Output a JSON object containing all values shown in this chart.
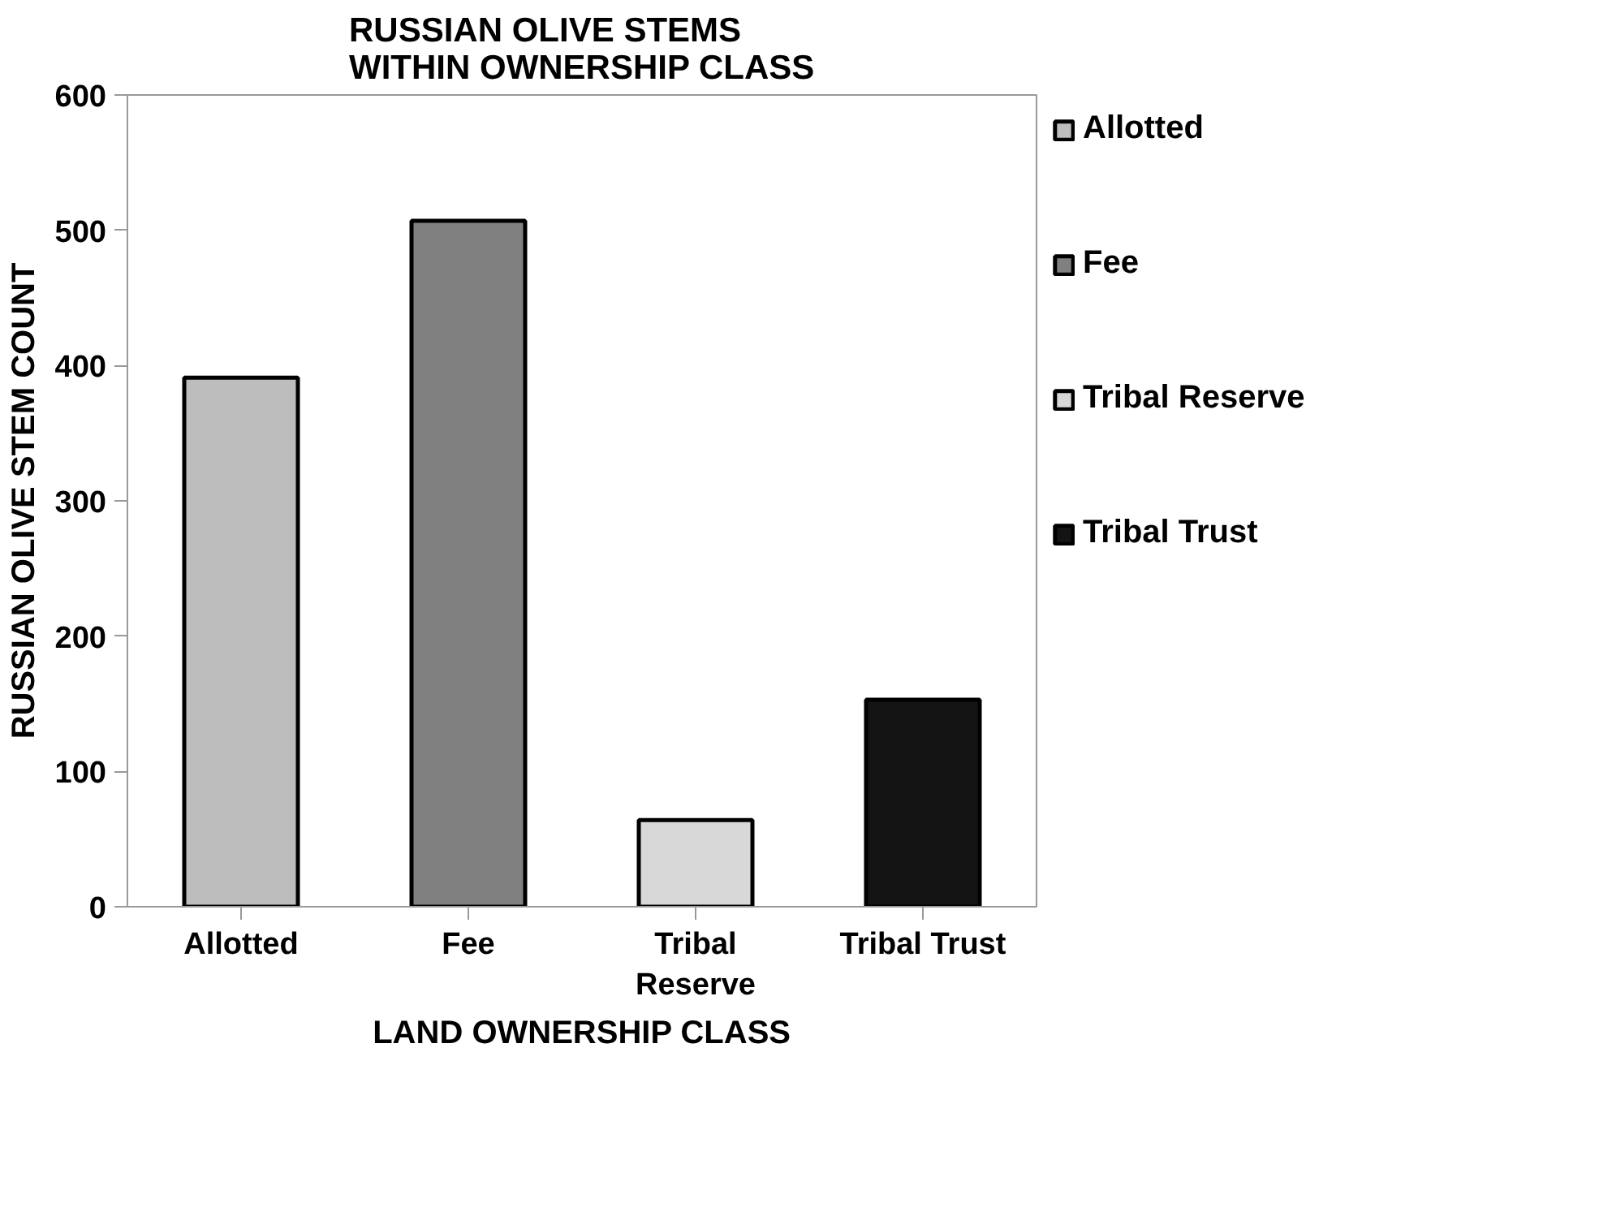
{
  "chart_data": {
    "type": "bar",
    "title": "RUSSIAN OLIVE STEMS\nWITHIN OWNERSHIP CLASS",
    "xlabel": "LAND OWNERSHIP CLASS",
    "ylabel": "RUSSIAN OLIVE STEM COUNT",
    "categories": [
      "Allotted",
      "Fee",
      "Tribal\nReserve",
      "Tribal Trust"
    ],
    "series": [
      {
        "name": "Allotted",
        "color": "#bdbdbd",
        "values": [
          391,
          null,
          null,
          null
        ]
      },
      {
        "name": "Fee",
        "color": "#808080",
        "values": [
          null,
          507,
          null,
          null
        ]
      },
      {
        "name": "Tribal Reserve",
        "color": "#d8d8d8",
        "values": [
          null,
          null,
          64,
          null
        ]
      },
      {
        "name": "Tribal Trust",
        "color": "#141414",
        "values": [
          null,
          null,
          null,
          153
        ]
      }
    ],
    "ylim": [
      0,
      600
    ],
    "yticks": [
      0,
      100,
      200,
      300,
      400,
      500,
      600
    ],
    "grid": false,
    "legend": "right"
  }
}
